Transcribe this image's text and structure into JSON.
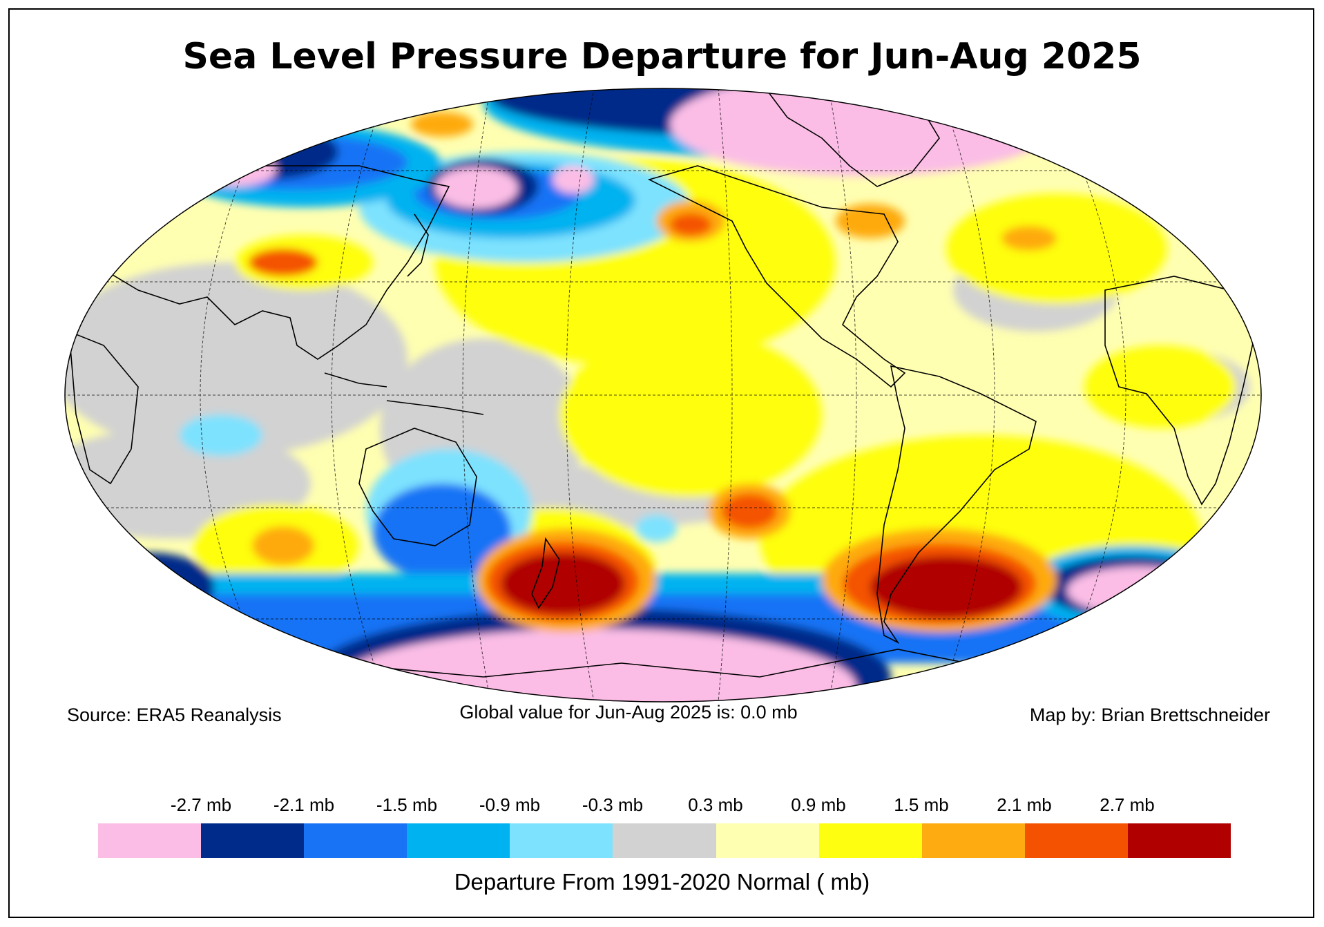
{
  "title": "Sea Level Pressure Departure for Jun-Aug 2025",
  "source": "Source: ERA5 Reanalysis",
  "global_value": "Global value for Jun-Aug 2025 is: 0.0 mb",
  "map_by": "Map by: Brian Brettschneider",
  "legend": {
    "title": "Departure From 1991-2020 Normal ( mb)",
    "tick_labels": [
      "-2.7 mb",
      "-2.1 mb",
      "-1.5 mb",
      "-0.9 mb",
      "-0.3 mb",
      "0.3 mb",
      "0.9 mb",
      "1.5 mb",
      "2.1 mb",
      "2.7 mb"
    ],
    "colors": [
      "#fbbde6",
      "#002b8a",
      "#1873f5",
      "#00b2f0",
      "#7de2fe",
      "#d2d2d2",
      "#ffffb1",
      "#fefe10",
      "#feaa11",
      "#f45200",
      "#b00000"
    ]
  }
}
